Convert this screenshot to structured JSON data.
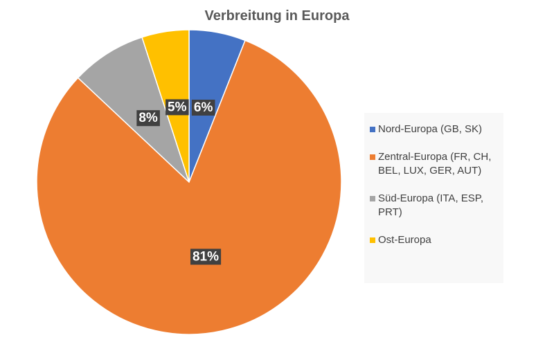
{
  "chart_data": {
    "type": "pie",
    "title": "Verbreitung in Europa",
    "categories": [
      "Nord-Europa (GB, SK)",
      "Zentral-Europa (FR, CH, BEL, LUX, GER, AUT)",
      "Süd-Europa (ITA, ESP, PRT)",
      "Ost-Europa"
    ],
    "values": [
      6,
      81,
      8,
      5
    ],
    "value_labels": [
      "6%",
      "81%",
      "8%",
      "5%"
    ],
    "colors": [
      "#4472c4",
      "#ed7d31",
      "#a5a5a5",
      "#ffc000"
    ],
    "legend": "right"
  }
}
